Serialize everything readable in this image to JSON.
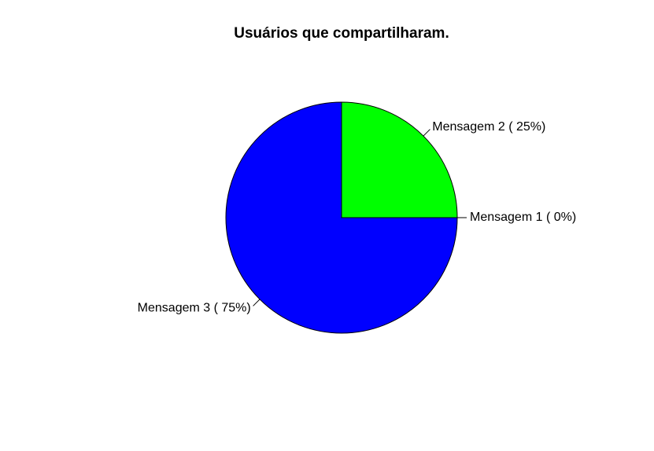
{
  "chart_data": {
    "type": "pie",
    "title": "Usuários que compartilharam.",
    "slices": [
      {
        "label": "Mensagem 1 ( 0%)",
        "value": 0,
        "color": "#FFFF00"
      },
      {
        "label": "Mensagem 2 ( 25%)",
        "value": 25,
        "color": "#00FF00"
      },
      {
        "label": "Mensagem 3 ( 75%)",
        "value": 75,
        "color": "#0000FF"
      }
    ],
    "start_angle_deg": 0,
    "direction": "counterclockwise",
    "border_color": "#000000",
    "background": "#FFFFFF"
  }
}
